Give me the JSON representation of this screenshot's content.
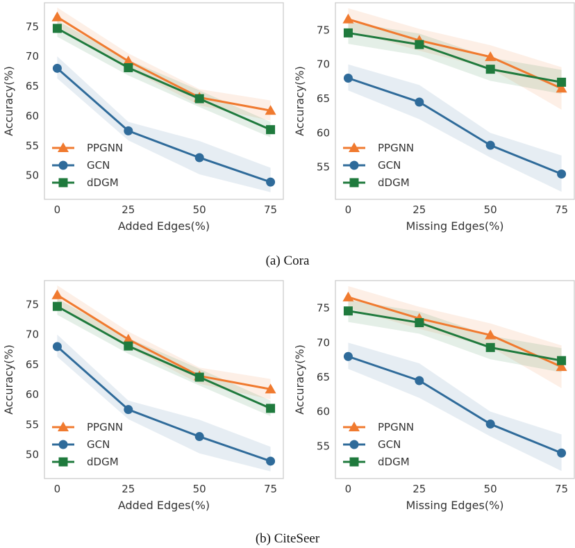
{
  "captions": [
    "(a) Cora",
    "(b) CiteSeer"
  ],
  "colors": {
    "PPGNN": "#f07a2f",
    "GCN": "#2f6b9a",
    "dDGM": "#1f7a3d"
  },
  "chart_data": [
    {
      "type": "line",
      "xlabel": "Added Edges(%)",
      "ylabel": "Accuracy(%)",
      "x": [
        0,
        25,
        50,
        75
      ],
      "xticks": [
        "0",
        "25",
        "50",
        "75"
      ],
      "yticks": [
        "50",
        "55",
        "60",
        "65",
        "70",
        "75"
      ],
      "ylim": [
        46,
        79
      ],
      "grid": false,
      "legend": "lower-left",
      "series": [
        {
          "name": "PPGNN",
          "values": [
            76.6,
            69.2,
            63.1,
            60.9
          ],
          "lower": [
            75.0,
            67.9,
            61.8,
            59.2
          ],
          "upper": [
            78.2,
            70.5,
            64.5,
            62.6
          ]
        },
        {
          "name": "GCN",
          "values": [
            68.0,
            57.5,
            53.0,
            48.9
          ],
          "lower": [
            66.3,
            55.9,
            50.2,
            47.2
          ],
          "upper": [
            70.0,
            59.0,
            55.8,
            51.3
          ]
        },
        {
          "name": "dDGM",
          "values": [
            74.7,
            68.1,
            62.9,
            57.7
          ],
          "lower": [
            73.3,
            66.8,
            61.5,
            56.4
          ],
          "upper": [
            76.0,
            69.4,
            64.3,
            59.0
          ]
        }
      ]
    },
    {
      "type": "line",
      "xlabel": "Missing Edges(%)",
      "ylabel": "Accuracy(%)",
      "x": [
        0,
        25,
        50,
        75
      ],
      "xticks": [
        "0",
        "25",
        "50",
        "75"
      ],
      "yticks": [
        "55",
        "60",
        "65",
        "70",
        "75"
      ],
      "ylim": [
        50.3,
        79
      ],
      "grid": false,
      "legend": "lower-left",
      "series": [
        {
          "name": "PPGNN",
          "values": [
            76.6,
            73.5,
            71.1,
            66.5
          ],
          "lower": [
            75.0,
            72.0,
            69.4,
            63.4
          ],
          "upper": [
            78.2,
            75.2,
            72.8,
            69.6
          ]
        },
        {
          "name": "GCN",
          "values": [
            68.0,
            64.5,
            58.2,
            54.0
          ],
          "lower": [
            66.2,
            62.0,
            56.4,
            51.4
          ],
          "upper": [
            70.0,
            67.0,
            60.0,
            56.7
          ]
        },
        {
          "name": "dDGM",
          "values": [
            74.6,
            72.9,
            69.3,
            67.4
          ],
          "lower": [
            73.0,
            71.3,
            67.6,
            65.7
          ],
          "upper": [
            76.2,
            74.5,
            71.0,
            69.2
          ]
        }
      ]
    },
    {
      "type": "line",
      "xlabel": "Added Edges(%)",
      "ylabel": "Accuracy(%)",
      "x": [
        0,
        25,
        50,
        75
      ],
      "xticks": [
        "0",
        "25",
        "50",
        "75"
      ],
      "yticks": [
        "50",
        "55",
        "60",
        "65",
        "70",
        "75"
      ],
      "ylim": [
        46,
        79
      ],
      "grid": false,
      "legend": "lower-left",
      "series": [
        {
          "name": "PPGNN",
          "values": [
            76.6,
            69.2,
            63.1,
            60.9
          ],
          "lower": [
            75.0,
            67.9,
            61.8,
            59.2
          ],
          "upper": [
            78.2,
            70.5,
            64.5,
            62.6
          ]
        },
        {
          "name": "GCN",
          "values": [
            68.0,
            57.5,
            53.0,
            48.9
          ],
          "lower": [
            66.3,
            55.9,
            50.2,
            47.2
          ],
          "upper": [
            70.0,
            59.0,
            55.8,
            51.3
          ]
        },
        {
          "name": "dDGM",
          "values": [
            74.7,
            68.1,
            62.9,
            57.7
          ],
          "lower": [
            73.3,
            66.8,
            61.5,
            56.4
          ],
          "upper": [
            76.0,
            69.4,
            64.3,
            59.0
          ]
        }
      ]
    },
    {
      "type": "line",
      "xlabel": "Missing Edges(%)",
      "ylabel": "Accuracy(%)",
      "x": [
        0,
        25,
        50,
        75
      ],
      "xticks": [
        "0",
        "25",
        "50",
        "75"
      ],
      "yticks": [
        "55",
        "60",
        "65",
        "70",
        "75"
      ],
      "ylim": [
        50.3,
        79
      ],
      "grid": false,
      "legend": "lower-left",
      "series": [
        {
          "name": "PPGNN",
          "values": [
            76.6,
            73.5,
            71.1,
            66.5
          ],
          "lower": [
            75.0,
            72.0,
            69.4,
            63.4
          ],
          "upper": [
            78.2,
            75.2,
            72.8,
            69.6
          ]
        },
        {
          "name": "GCN",
          "values": [
            68.0,
            64.5,
            58.2,
            54.0
          ],
          "lower": [
            66.2,
            62.0,
            56.4,
            51.4
          ],
          "upper": [
            70.0,
            67.0,
            60.0,
            56.7
          ]
        },
        {
          "name": "dDGM",
          "values": [
            74.6,
            72.9,
            69.3,
            67.4
          ],
          "lower": [
            73.0,
            71.3,
            67.6,
            65.7
          ],
          "upper": [
            76.2,
            74.5,
            71.0,
            69.2
          ]
        }
      ]
    }
  ]
}
